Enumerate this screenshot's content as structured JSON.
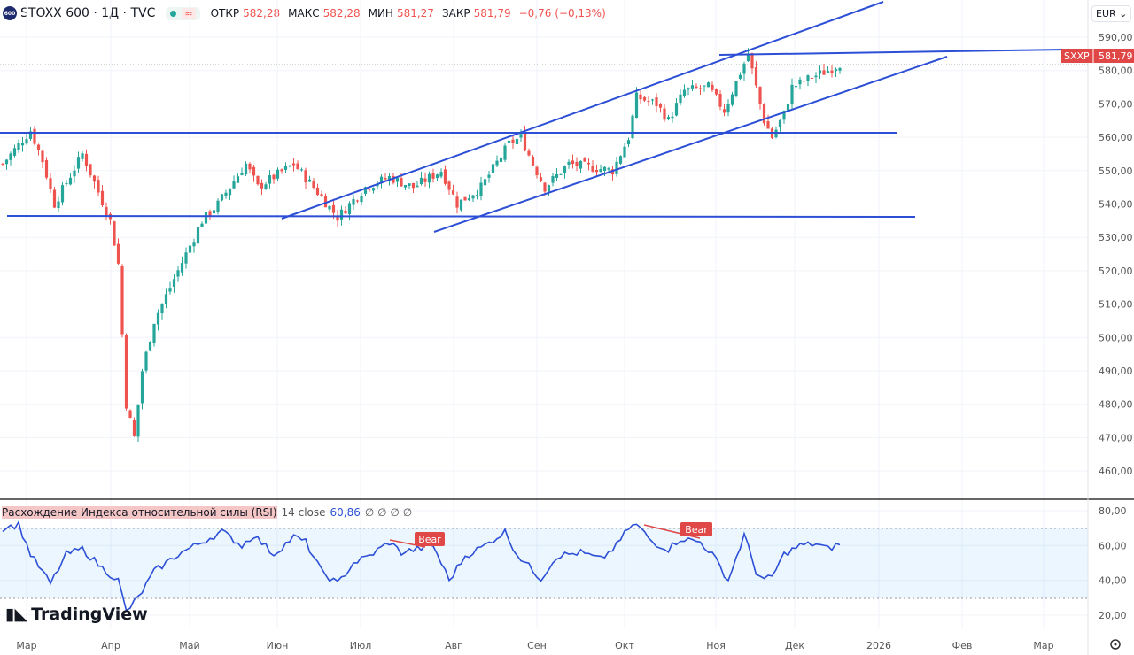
{
  "header": {
    "logo": "600",
    "symbol": "STOXX 600 · 1Д · TVC",
    "open_label": "ОТКР",
    "open": "582,28",
    "high_label": "МАКС",
    "high": "582,28",
    "low_label": "МИН",
    "low": "581,27",
    "close_label": "ЗАКР",
    "close": "581,79",
    "change": "−0,76 (−0,13%)",
    "wave": "≈"
  },
  "currency": "EUR",
  "last_price": {
    "ticker": "SXXP",
    "value": "581,79"
  },
  "rsi": {
    "title": "Расхождение Индекса относительной силы (RSI)",
    "params": "14 close",
    "value": "60,86",
    "extras": "∅ ∅ ∅ ∅",
    "bear1": "Bear",
    "bear2": "Bear"
  },
  "brand": "TradingView",
  "chart_data": {
    "type": "candlestick",
    "price_ticks": [
      "590,00",
      "580,00",
      "570,00",
      "560,00",
      "550,00",
      "540,00",
      "530,00",
      "520,00",
      "510,00",
      "500,00",
      "490,00",
      "480,00",
      "470,00",
      "460,00"
    ],
    "rsi_ticks": [
      "80,00",
      "60,00",
      "40,00",
      "20,00"
    ],
    "x_ticks": [
      "Мар",
      "Апр",
      "Май",
      "Июн",
      "Июл",
      "Авг",
      "Сен",
      "Окт",
      "Ноя",
      "Дек",
      "2026",
      "Фев",
      "Мар"
    ],
    "ylim": [
      460,
      590
    ],
    "rsi_band": [
      30,
      70
    ],
    "close_waypoints": [
      [
        0,
        552
      ],
      [
        7,
        562
      ],
      [
        10,
        553
      ],
      [
        13,
        540
      ],
      [
        20,
        555
      ],
      [
        27,
        535
      ],
      [
        29,
        522
      ],
      [
        31,
        480
      ],
      [
        33,
        470
      ],
      [
        35,
        490
      ],
      [
        38,
        505
      ],
      [
        44,
        520
      ],
      [
        50,
        535
      ],
      [
        54,
        540
      ],
      [
        61,
        552
      ],
      [
        64,
        545
      ],
      [
        73,
        552
      ],
      [
        78,
        545
      ],
      [
        84,
        536
      ],
      [
        91,
        545
      ],
      [
        97,
        548
      ],
      [
        103,
        545
      ],
      [
        110,
        550
      ],
      [
        114,
        540
      ],
      [
        120,
        545
      ],
      [
        127,
        558
      ],
      [
        130,
        560
      ],
      [
        133,
        552
      ],
      [
        136,
        545
      ],
      [
        142,
        552
      ],
      [
        153,
        550
      ],
      [
        157,
        560
      ],
      [
        159,
        572
      ],
      [
        164,
        570
      ],
      [
        167,
        565
      ],
      [
        171,
        574
      ],
      [
        177,
        575
      ],
      [
        181,
        568
      ],
      [
        187,
        585
      ],
      [
        189,
        575
      ],
      [
        191,
        565
      ],
      [
        193,
        560
      ],
      [
        196,
        567
      ],
      [
        198,
        575
      ],
      [
        203,
        578
      ],
      [
        207,
        580
      ],
      [
        210,
        582
      ]
    ],
    "rsi_waypoints": [
      [
        0,
        70
      ],
      [
        4,
        72
      ],
      [
        7,
        55
      ],
      [
        12,
        38
      ],
      [
        16,
        55
      ],
      [
        20,
        58
      ],
      [
        25,
        47
      ],
      [
        29,
        40
      ],
      [
        31,
        22
      ],
      [
        34,
        30
      ],
      [
        38,
        45
      ],
      [
        44,
        55
      ],
      [
        50,
        62
      ],
      [
        55,
        68
      ],
      [
        60,
        60
      ],
      [
        63,
        66
      ],
      [
        68,
        55
      ],
      [
        73,
        65
      ],
      [
        76,
        62
      ],
      [
        80,
        45
      ],
      [
        84,
        38
      ],
      [
        88,
        50
      ],
      [
        92,
        54
      ],
      [
        97,
        62
      ],
      [
        100,
        56
      ],
      [
        104,
        58
      ],
      [
        108,
        60
      ],
      [
        112,
        40
      ],
      [
        116,
        54
      ],
      [
        121,
        60
      ],
      [
        126,
        68
      ],
      [
        129,
        55
      ],
      [
        132,
        48
      ],
      [
        135,
        41
      ],
      [
        139,
        54
      ],
      [
        145,
        56
      ],
      [
        150,
        52
      ],
      [
        154,
        60
      ],
      [
        157,
        70
      ],
      [
        159,
        72
      ],
      [
        163,
        62
      ],
      [
        167,
        58
      ],
      [
        170,
        64
      ],
      [
        175,
        62
      ],
      [
        178,
        55
      ],
      [
        182,
        40
      ],
      [
        186,
        66
      ],
      [
        189,
        45
      ],
      [
        191,
        40
      ],
      [
        193,
        42
      ],
      [
        196,
        55
      ],
      [
        200,
        60
      ],
      [
        204,
        61
      ],
      [
        207,
        58
      ],
      [
        210,
        61
      ]
    ]
  }
}
